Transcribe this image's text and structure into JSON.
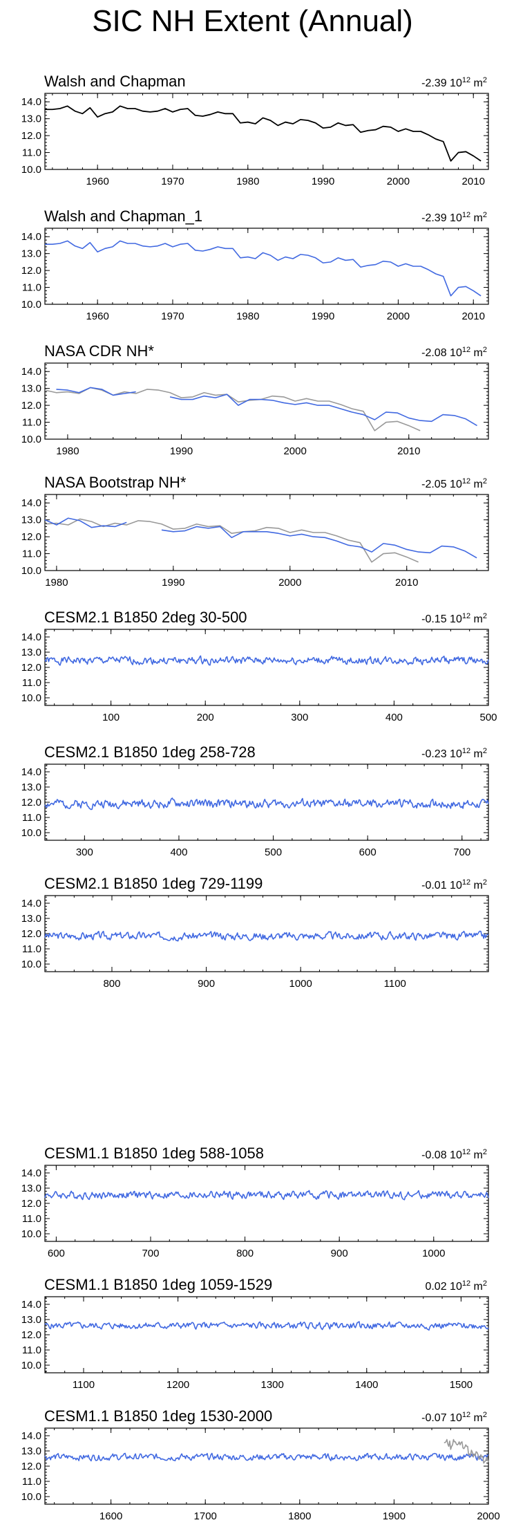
{
  "page_title": "SIC NH Extent (Annual)",
  "colors": {
    "black": "#000000",
    "blue": "#4169e1",
    "gray": "#999999"
  },
  "chart_data": [
    {
      "type": "line",
      "title": "Walsh and Chapman",
      "trend": "-2.39",
      "units_base": "10",
      "units_exp": "12",
      "units_unit": "m",
      "units_unit_exp": "2",
      "xlim": [
        1953,
        2012
      ],
      "ylim": [
        10,
        14.5
      ],
      "yticks": [
        "10.0",
        "11.0",
        "12.0",
        "13.0",
        "14.0"
      ],
      "xticks": [
        1960,
        1970,
        1980,
        1990,
        2000,
        2010
      ],
      "series": [
        {
          "name": "Walsh and Chapman",
          "color": "black",
          "x_start": 1953,
          "values": [
            13.55,
            13.55,
            13.6,
            13.75,
            13.45,
            13.3,
            13.65,
            13.1,
            13.3,
            13.4,
            13.75,
            13.6,
            13.6,
            13.45,
            13.4,
            13.45,
            13.6,
            13.4,
            13.55,
            13.6,
            13.2,
            13.15,
            13.25,
            13.4,
            13.3,
            13.3,
            12.75,
            12.8,
            12.7,
            13.05,
            12.9,
            12.6,
            12.8,
            12.7,
            12.95,
            12.9,
            12.75,
            12.45,
            12.5,
            12.75,
            12.6,
            12.65,
            12.2,
            12.3,
            12.35,
            12.55,
            12.5,
            12.25,
            12.4,
            12.25,
            12.25,
            12.05,
            11.8,
            11.65,
            10.5,
            11.0,
            11.05,
            10.8,
            10.5
          ]
        }
      ]
    },
    {
      "type": "line",
      "title": "Walsh and Chapman_1",
      "trend": "-2.39",
      "units_base": "10",
      "units_exp": "12",
      "units_unit": "m",
      "units_unit_exp": "2",
      "xlim": [
        1953,
        2012
      ],
      "ylim": [
        10,
        14.5
      ],
      "yticks": [
        "10.0",
        "11.0",
        "12.0",
        "13.0",
        "14.0"
      ],
      "xticks": [
        1960,
        1970,
        1980,
        1990,
        2000,
        2010
      ],
      "series": [
        {
          "name": "Walsh and Chapman_1",
          "color": "blue",
          "x_start": 1953,
          "values": [
            13.55,
            13.55,
            13.6,
            13.75,
            13.45,
            13.3,
            13.65,
            13.1,
            13.3,
            13.4,
            13.75,
            13.6,
            13.6,
            13.45,
            13.4,
            13.45,
            13.6,
            13.4,
            13.55,
            13.6,
            13.2,
            13.15,
            13.25,
            13.4,
            13.3,
            13.3,
            12.75,
            12.8,
            12.7,
            13.05,
            12.9,
            12.6,
            12.8,
            12.7,
            12.95,
            12.9,
            12.75,
            12.45,
            12.5,
            12.75,
            12.6,
            12.65,
            12.2,
            12.3,
            12.35,
            12.55,
            12.5,
            12.25,
            12.4,
            12.25,
            12.25,
            12.05,
            11.8,
            11.65,
            10.5,
            11.0,
            11.05,
            10.8,
            10.5
          ]
        }
      ]
    },
    {
      "type": "line",
      "title": "NASA CDR NH*",
      "trend": "-2.08",
      "units_base": "10",
      "units_exp": "12",
      "units_unit": "m",
      "units_unit_exp": "2",
      "xlim": [
        1978,
        2017
      ],
      "ylim": [
        10,
        14.5
      ],
      "yticks": [
        "10.0",
        "11.0",
        "12.0",
        "13.0",
        "14.0"
      ],
      "xticks": [
        1980,
        1990,
        2000,
        2010
      ],
      "series": [
        {
          "name": "Walsh and Chapman (overlay)",
          "color": "gray",
          "x_start": 1978,
          "values": [
            12.9,
            12.75,
            12.8,
            12.7,
            13.05,
            12.9,
            12.6,
            12.8,
            12.7,
            12.95,
            12.9,
            12.75,
            12.45,
            12.5,
            12.75,
            12.6,
            12.65,
            12.2,
            12.3,
            12.35,
            12.55,
            12.5,
            12.25,
            12.4,
            12.25,
            12.25,
            12.05,
            11.8,
            11.65,
            10.5,
            11.0,
            11.05,
            10.8,
            10.5
          ]
        },
        {
          "name": "NASA CDR NH",
          "color": "blue",
          "x_start": 1979,
          "gap_after": 1986,
          "resume_at": 1989,
          "values": [
            12.95,
            12.9,
            12.75,
            13.05,
            12.95,
            12.6,
            12.7,
            12.8,
            null,
            null,
            12.5,
            12.35,
            12.35,
            12.55,
            12.45,
            12.65,
            12.0,
            12.35,
            12.35,
            12.3,
            12.15,
            12.05,
            12.15,
            12.0,
            12.0,
            11.8,
            11.6,
            11.45,
            11.15,
            11.6,
            11.55,
            11.25,
            11.1,
            11.05,
            11.45,
            11.4,
            11.2,
            10.8
          ]
        }
      ]
    },
    {
      "type": "line",
      "title": "NASA Bootstrap NH*",
      "trend": "-2.05",
      "units_base": "10",
      "units_exp": "12",
      "units_unit": "m",
      "units_unit_exp": "2",
      "xlim": [
        1979,
        2017
      ],
      "ylim": [
        10,
        14.5
      ],
      "yticks": [
        "10.0",
        "11.0",
        "12.0",
        "13.0",
        "14.0"
      ],
      "xticks": [
        1980,
        1990,
        2000,
        2010
      ],
      "series": [
        {
          "name": "Walsh and Chapman (overlay)",
          "color": "gray",
          "x_start": 1979,
          "values": [
            12.75,
            12.8,
            12.7,
            13.05,
            12.9,
            12.6,
            12.8,
            12.7,
            12.95,
            12.9,
            12.75,
            12.45,
            12.5,
            12.75,
            12.6,
            12.65,
            12.2,
            12.3,
            12.35,
            12.55,
            12.5,
            12.25,
            12.4,
            12.25,
            12.25,
            12.05,
            11.8,
            11.65,
            10.5,
            11.0,
            11.05,
            10.8,
            10.5
          ]
        },
        {
          "name": "NASA Bootstrap NH",
          "color": "blue",
          "x_start": 1979,
          "values": [
            13.0,
            12.7,
            13.1,
            12.95,
            12.55,
            12.65,
            12.6,
            12.85,
            null,
            null,
            12.4,
            12.3,
            12.35,
            12.6,
            12.5,
            12.6,
            11.95,
            12.3,
            12.3,
            12.3,
            12.2,
            12.05,
            12.15,
            12.0,
            11.95,
            11.75,
            11.5,
            11.4,
            11.1,
            11.6,
            11.5,
            11.25,
            11.1,
            11.05,
            11.45,
            11.4,
            11.15,
            10.75
          ]
        }
      ]
    },
    {
      "type": "line",
      "title": "CESM2.1 B1850 2deg 30-500",
      "trend": "-0.15",
      "units_base": "10",
      "units_exp": "12",
      "units_unit": "m",
      "units_unit_exp": "2",
      "xlim": [
        30,
        500
      ],
      "ylim": [
        9.5,
        14.5
      ],
      "yticks": [
        "10.0",
        "11.0",
        "12.0",
        "13.0",
        "14.0"
      ],
      "xticks": [
        100,
        200,
        300,
        400,
        500
      ],
      "series": [
        {
          "name": "CESM2.1 B1850 2deg",
          "color": "blue",
          "noise": {
            "mean": 12.45,
            "amplitude": 0.35,
            "seed": 1
          }
        }
      ]
    },
    {
      "type": "line",
      "title": "CESM2.1 B1850 1deg 258-728",
      "trend": "-0.23",
      "units_base": "10",
      "units_exp": "12",
      "units_unit": "m",
      "units_unit_exp": "2",
      "xlim": [
        258,
        728
      ],
      "ylim": [
        9.5,
        14.5
      ],
      "yticks": [
        "10.0",
        "11.0",
        "12.0",
        "13.0",
        "14.0"
      ],
      "xticks": [
        300,
        400,
        500,
        600,
        700
      ],
      "series": [
        {
          "name": "CESM2.1 B1850 1deg",
          "color": "blue",
          "noise": {
            "mean": 11.9,
            "amplitude": 0.4,
            "seed": 2
          }
        }
      ]
    },
    {
      "type": "line",
      "title": "CESM2.1 B1850 1deg 729-1199",
      "trend": "-0.01",
      "units_base": "10",
      "units_exp": "12",
      "units_unit": "m",
      "units_unit_exp": "2",
      "xlim": [
        729,
        1199
      ],
      "ylim": [
        9.5,
        14.5
      ],
      "yticks": [
        "10.0",
        "11.0",
        "12.0",
        "13.0",
        "14.0"
      ],
      "xticks": [
        800,
        900,
        1000,
        1100
      ],
      "series": [
        {
          "name": "CESM2.1 B1850 1deg",
          "color": "blue",
          "noise": {
            "mean": 11.85,
            "amplitude": 0.35,
            "seed": 3
          }
        }
      ]
    },
    {
      "type": "line",
      "title": "CESM1.1 B1850 1deg 588-1058",
      "trend": "-0.08",
      "units_base": "10",
      "units_exp": "12",
      "units_unit": "m",
      "units_unit_exp": "2",
      "xlim": [
        588,
        1058
      ],
      "ylim": [
        9.5,
        14.5
      ],
      "yticks": [
        "10.0",
        "11.0",
        "12.0",
        "13.0",
        "14.0"
      ],
      "xticks": [
        600,
        700,
        800,
        900,
        1000
      ],
      "series": [
        {
          "name": "CESM1.1 B1850 1deg",
          "color": "blue",
          "noise": {
            "mean": 12.55,
            "amplitude": 0.35,
            "seed": 4
          }
        }
      ]
    },
    {
      "type": "line",
      "title": "CESM1.1 B1850 1deg 1059-1529",
      "trend": "0.02",
      "units_base": "10",
      "units_exp": "12",
      "units_unit": "m",
      "units_unit_exp": "2",
      "xlim": [
        1059,
        1529
      ],
      "ylim": [
        9.5,
        14.5
      ],
      "yticks": [
        "10.0",
        "11.0",
        "12.0",
        "13.0",
        "14.0"
      ],
      "xticks": [
        1100,
        1200,
        1300,
        1400,
        1500
      ],
      "series": [
        {
          "name": "CESM1.1 B1850 1deg",
          "color": "blue",
          "noise": {
            "mean": 12.6,
            "amplitude": 0.3,
            "seed": 5
          }
        }
      ]
    },
    {
      "type": "line",
      "title": "CESM1.1 B1850 1deg 1530-2000",
      "trend": "-0.07",
      "units_base": "10",
      "units_exp": "12",
      "units_unit": "m",
      "units_unit_exp": "2",
      "xlim": [
        1530,
        2000
      ],
      "ylim": [
        9.5,
        14.5
      ],
      "yticks": [
        "10.0",
        "11.0",
        "12.0",
        "13.0",
        "14.0"
      ],
      "xticks": [
        1600,
        1700,
        1800,
        1900,
        2000
      ],
      "series": [
        {
          "name": "CESM1.1 B1850 1deg",
          "color": "blue",
          "noise": {
            "mean": 12.6,
            "amplitude": 0.3,
            "seed": 6
          }
        },
        {
          "name": "Walsh and Chapman (overlay)",
          "color": "gray",
          "x_start": 1953,
          "values": [
            13.55,
            13.55,
            13.6,
            13.75,
            13.45,
            13.3,
            13.65,
            13.1,
            13.3,
            13.4,
            13.75,
            13.6,
            13.6,
            13.45,
            13.4,
            13.45,
            13.6,
            13.4,
            13.55,
            13.6,
            13.2,
            13.15,
            13.25,
            13.4,
            13.3,
            13.3,
            12.75,
            12.8,
            12.7,
            13.05,
            12.9,
            12.6,
            12.8,
            12.7,
            12.95,
            12.9,
            12.75,
            12.45,
            12.5,
            12.75,
            12.6,
            12.65,
            12.2,
            12.3,
            12.35,
            12.55,
            12.5,
            12.25
          ]
        }
      ]
    }
  ]
}
